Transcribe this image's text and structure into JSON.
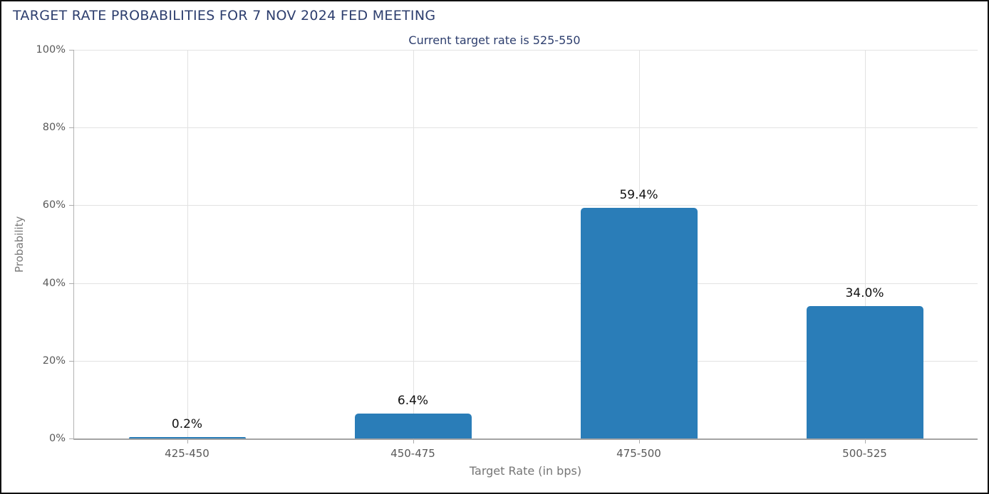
{
  "header": {
    "title": "TARGET RATE PROBABILITIES FOR 7 NOV 2024 FED MEETING",
    "subtitle": "Current target rate is 525-550"
  },
  "chart_data": {
    "type": "bar",
    "title": "TARGET RATE PROBABILITIES FOR 7 NOV 2024 FED MEETING",
    "subtitle": "Current target rate is 525-550",
    "categories": [
      "425-450",
      "450-475",
      "475-500",
      "500-525"
    ],
    "values": [
      0.2,
      6.4,
      59.4,
      34.0
    ],
    "value_labels": [
      "0.2%",
      "6.4%",
      "59.4%",
      "34.0%"
    ],
    "xlabel": "Target Rate (in bps)",
    "ylabel": "Probability",
    "ylim": [
      0,
      100
    ],
    "yticks": [
      0,
      20,
      40,
      60,
      80,
      100
    ],
    "ytick_labels": [
      "0%",
      "20%",
      "40%",
      "60%",
      "80%",
      "100%"
    ],
    "legend": "none",
    "grid": "horizontal lines at 20% steps, vertical line at each category center",
    "colors": {
      "bar": "#2a7db8",
      "heading_text": "#2d3e6e",
      "tick_text": "#595959",
      "axis_title_text": "#757575",
      "value_label_text": "#111111",
      "gridline": "#e2e2e2",
      "axis_line": "#a3a3a3",
      "border": "#111111",
      "background": "#ffffff"
    }
  }
}
